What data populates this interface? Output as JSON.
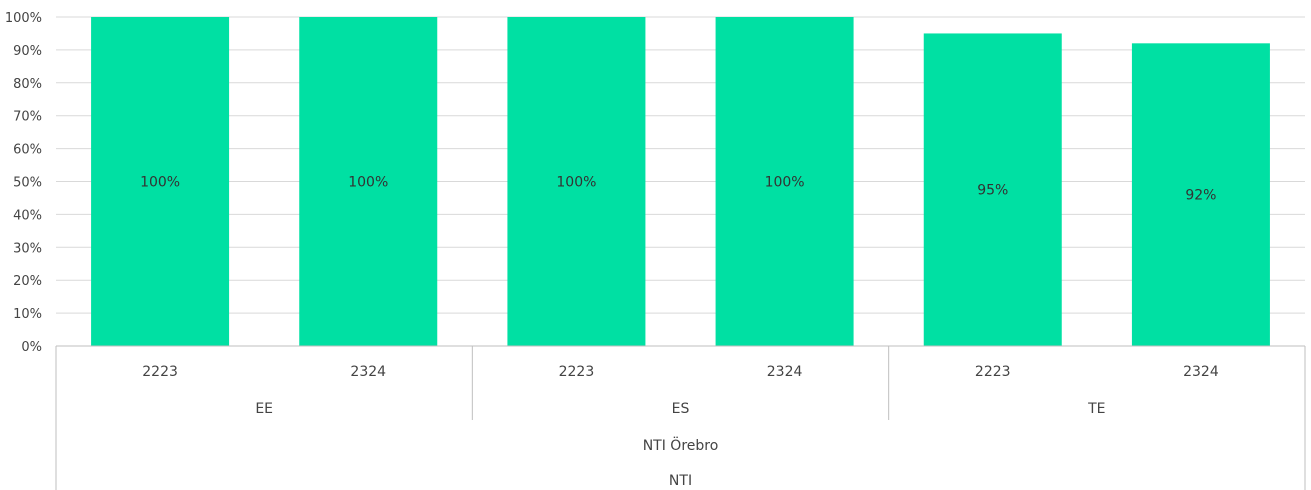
{
  "chart_data": {
    "type": "bar",
    "y_ticks": [
      "0%",
      "10%",
      "20%",
      "30%",
      "40%",
      "50%",
      "60%",
      "70%",
      "80%",
      "90%",
      "100%"
    ],
    "ylim": [
      0,
      100
    ],
    "bars": [
      {
        "category": "2223",
        "group": "EE",
        "value": 100,
        "label": "100%"
      },
      {
        "category": "2324",
        "group": "EE",
        "value": 100,
        "label": "100%"
      },
      {
        "category": "2223",
        "group": "ES",
        "value": 100,
        "label": "100%"
      },
      {
        "category": "2324",
        "group": "ES",
        "value": 100,
        "label": "100%"
      },
      {
        "category": "2223",
        "group": "TE",
        "value": 95,
        "label": "95%"
      },
      {
        "category": "2324",
        "group": "TE",
        "value": 92,
        "label": "92%"
      }
    ],
    "groups": [
      "EE",
      "ES",
      "TE"
    ],
    "level3": "NTI Örebro",
    "level4": "NTI",
    "bar_color": "#00e0a3",
    "grid": true
  }
}
